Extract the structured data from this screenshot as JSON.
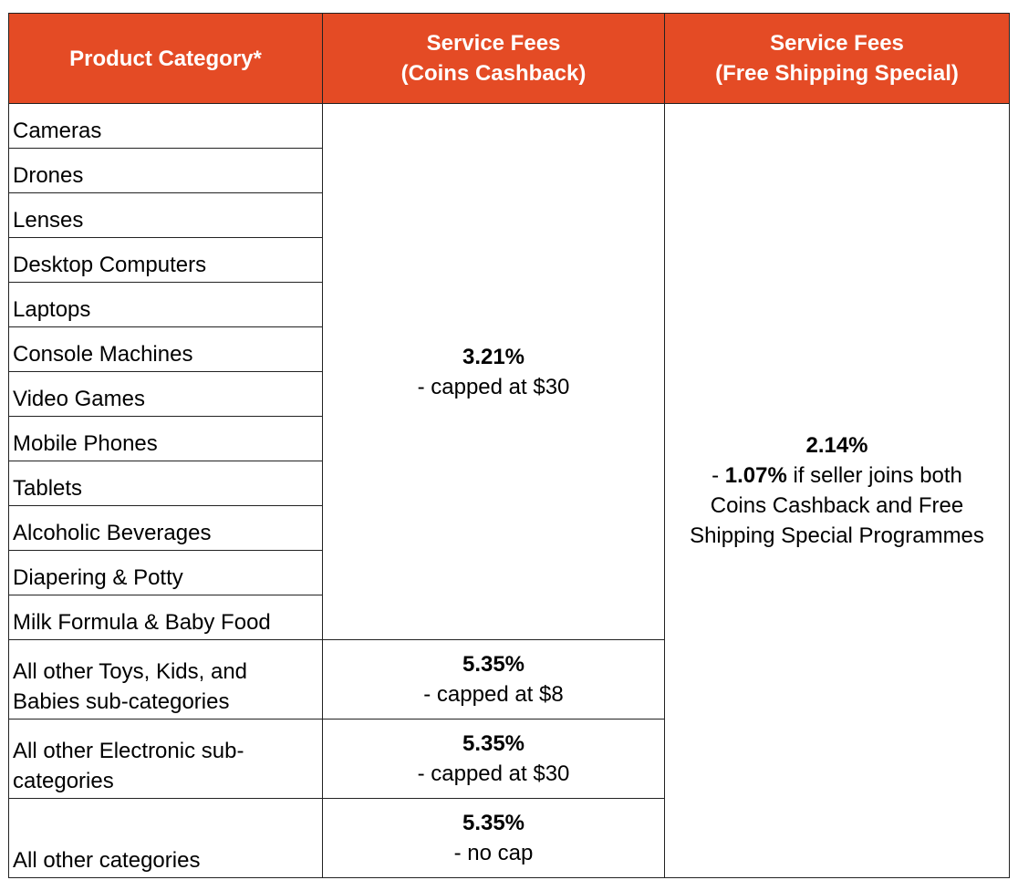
{
  "header": {
    "col1": "Product Category*",
    "col2_line1": "Service Fees",
    "col2_line2": "(Coins Cashback)",
    "col3_line1": "Service Fees",
    "col3_line2": "(Free Shipping Special)"
  },
  "group1": {
    "categories": [
      "Cameras",
      "Drones",
      "Lenses",
      "Desktop Computers",
      "Laptops",
      "Console Machines",
      "Video Games",
      "Mobile Phones",
      "Tablets",
      "Alcoholic Beverages",
      "Diapering & Potty",
      "Milk Formula & Baby Food"
    ],
    "fee": "3.21%",
    "note": "- capped at $30"
  },
  "group2": {
    "category": "All other Toys, Kids, and Babies sub-categories",
    "fee": "5.35%",
    "note": "- capped at $8"
  },
  "group3": {
    "category": "All other Electronic sub-categories",
    "fee": "5.35%",
    "note": "- capped at $30"
  },
  "group4": {
    "category": "All other categories",
    "fee": "5.35%",
    "note": "- no cap"
  },
  "shipping": {
    "fee": "2.14%",
    "dash": "- ",
    "reduced": "1.07%",
    "note": " if seller joins both Coins Cashback and Free Shipping Special Programmes"
  },
  "colors": {
    "header_bg": "#E44B25",
    "header_text": "#FFFFFF",
    "border": "#222222"
  }
}
